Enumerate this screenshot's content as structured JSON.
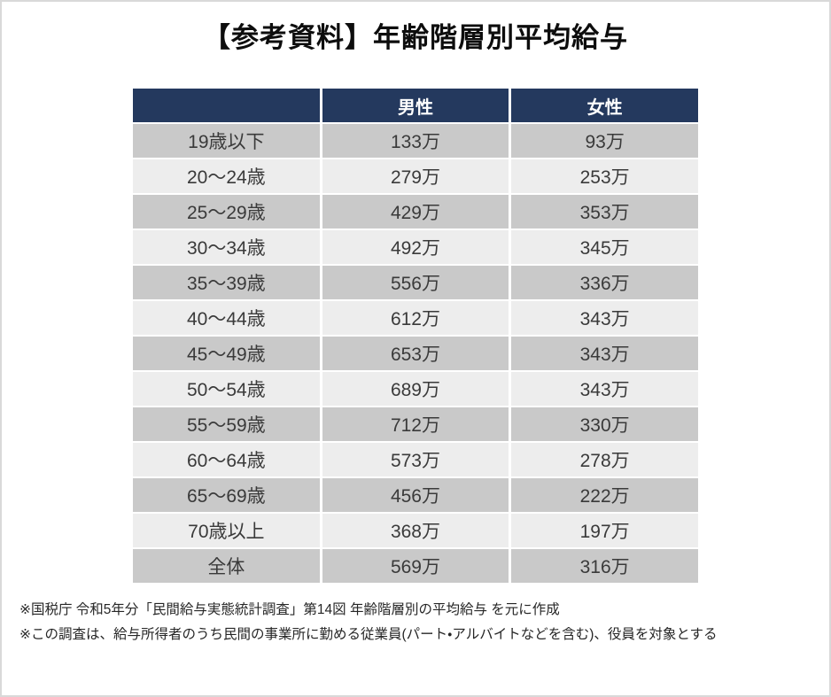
{
  "title": "【参考資料】年齢階層別平均給与",
  "table": {
    "columns": [
      "",
      "男性",
      "女性"
    ],
    "rows": [
      {
        "age": "19歳以下",
        "male": "133万",
        "female": "93万"
      },
      {
        "age": "20〜24歳",
        "male": "279万",
        "female": "253万"
      },
      {
        "age": "25〜29歳",
        "male": "429万",
        "female": "353万"
      },
      {
        "age": "30〜34歳",
        "male": "492万",
        "female": "345万"
      },
      {
        "age": "35〜39歳",
        "male": "556万",
        "female": "336万"
      },
      {
        "age": "40〜44歳",
        "male": "612万",
        "female": "343万"
      },
      {
        "age": "45〜49歳",
        "male": "653万",
        "female": "343万"
      },
      {
        "age": "50〜54歳",
        "male": "689万",
        "female": "343万"
      },
      {
        "age": "55〜59歳",
        "male": "712万",
        "female": "330万"
      },
      {
        "age": "60〜64歳",
        "male": "573万",
        "female": "278万"
      },
      {
        "age": "65〜69歳",
        "male": "456万",
        "female": "222万"
      },
      {
        "age": "70歳以上",
        "male": "368万",
        "female": "197万"
      },
      {
        "age": "全体",
        "male": "569万",
        "female": "316万"
      }
    ]
  },
  "notes": [
    "※国税庁 令和5年分「民間給与実態統計調査」第14図 年齢階層別の平均給与 を元に作成",
    "※この調査は、給与所得者のうち民間の事業所に勤める従業員(パート・アルバイトなどを含む)、役員を対象とする"
  ],
  "colors": {
    "header_bg": "#24395e",
    "header_text": "#ffffff",
    "band_dark": "#c9c9c9",
    "band_light": "#ededed",
    "cell_text": "#3a3a3a",
    "page_border": "#d9d9d9",
    "grid_line": "#ffffff"
  },
  "chart_data": {
    "type": "table",
    "title": "【参考資料】年齢階層別平均給与",
    "unit": "万円",
    "categories": [
      "19歳以下",
      "20〜24歳",
      "25〜29歳",
      "30〜34歳",
      "35〜39歳",
      "40〜44歳",
      "45〜49歳",
      "50〜54歳",
      "55〜59歳",
      "60〜64歳",
      "65〜69歳",
      "70歳以上",
      "全体"
    ],
    "series": [
      {
        "name": "男性",
        "values": [
          133,
          279,
          429,
          492,
          556,
          612,
          653,
          689,
          712,
          573,
          456,
          368,
          569
        ]
      },
      {
        "name": "女性",
        "values": [
          93,
          253,
          353,
          345,
          336,
          343,
          343,
          343,
          330,
          278,
          222,
          197,
          316
        ]
      }
    ],
    "source_note": "国税庁 令和5年分「民間給与実態統計調査」第14図 年齢階層別の平均給与"
  }
}
